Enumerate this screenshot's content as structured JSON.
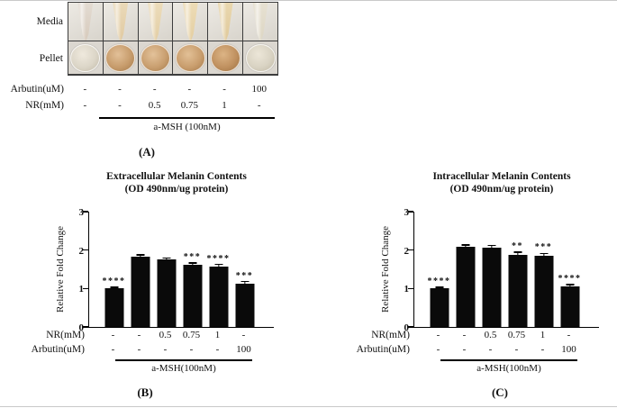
{
  "figure": {
    "border_color": "#c9c9c9",
    "background": "#ffffff"
  },
  "panelA": {
    "panel_label": "(A)",
    "row_labels": [
      "Media",
      "Pellet"
    ],
    "treatment_rows": [
      {
        "label": "Arbutin(uM)",
        "values": [
          "-",
          "-",
          "-",
          "-",
          "-",
          "100"
        ]
      },
      {
        "label": "NR(mM)",
        "values": [
          "-",
          "-",
          "0.5",
          "0.75",
          "1",
          "-"
        ]
      }
    ],
    "group_line_label": "a-MSH (100nM)",
    "media_cell_bg": [
      "#edeae4",
      "#d8d4cc"
    ],
    "pellet_cell_bg": "#dbd7d0",
    "grid_line_color": "#3c3c3c",
    "media_tube_colors": [
      [
        "#e3dbd2",
        "#d6c9ba"
      ],
      [
        "#ead9b8",
        "#e0c9a0"
      ],
      [
        "#ecdcba",
        "#e2cda4"
      ],
      [
        "#eddcb6",
        "#e3cda0"
      ],
      [
        "#e9d7ae",
        "#dfc89a"
      ],
      [
        "#e7e1d2",
        "#dcd5c2"
      ]
    ],
    "pellet_colors": [
      [
        "#efe9dd",
        "#dcd6c8",
        "#c6bfae"
      ],
      [
        "#e2c098",
        "#c79c6c",
        "#a97f50"
      ],
      [
        "#e3c29a",
        "#c99f70",
        "#ab8152"
      ],
      [
        "#e2c096",
        "#c99e6e",
        "#aa7f50"
      ],
      [
        "#dcb485",
        "#c09160",
        "#a27646"
      ],
      [
        "#ece6d8",
        "#d9d3c3",
        "#c3bcaa"
      ]
    ]
  },
  "chart_data": [
    {
      "type": "bar",
      "panel_label": "(B)",
      "title": "Extracellular Melanin Contents",
      "subtitle": "(OD 490nm/ug protein)",
      "ylabel": "Relative Fold Change",
      "ylim": [
        0,
        3
      ],
      "yticks": [
        0,
        1,
        2,
        3
      ],
      "bar_color": "#0a0a0a",
      "values": [
        1.0,
        1.82,
        1.75,
        1.62,
        1.57,
        1.12
      ],
      "errors": [
        0.02,
        0.04,
        0.03,
        0.03,
        0.04,
        0.05
      ],
      "significance": [
        "****",
        "",
        "",
        "***",
        "****",
        "***"
      ],
      "row_label_nr": "NR(mM)",
      "nr_values": [
        "-",
        "-",
        "0.5",
        "0.75",
        "1",
        "-"
      ],
      "row_label_arbutin": "Arbutin(uM)",
      "arbutin_values": [
        "-",
        "-",
        "-",
        "-",
        "-",
        "100"
      ],
      "group_line_label": "a-MSH(100nM)"
    },
    {
      "type": "bar",
      "panel_label": "(C)",
      "title": "Intracellular Melanin Contents",
      "subtitle": "(OD 490nm/ug protein)",
      "ylabel": "Relative Fold Change",
      "ylim": [
        0,
        3
      ],
      "yticks": [
        0,
        1,
        2,
        3
      ],
      "bar_color": "#0a0a0a",
      "values": [
        1.0,
        2.08,
        2.07,
        1.88,
        1.85,
        1.05
      ],
      "errors": [
        0.02,
        0.04,
        0.04,
        0.05,
        0.05,
        0.04
      ],
      "significance": [
        "****",
        "",
        "",
        "**",
        "***",
        "****"
      ],
      "row_label_nr": "NR(mM)",
      "nr_values": [
        "-",
        "-",
        "0.5",
        "0.75",
        "1",
        "-"
      ],
      "row_label_arbutin": "Arbutin(uM)",
      "arbutin_values": [
        "-",
        "-",
        "-",
        "-",
        "-",
        "100"
      ],
      "group_line_label": "a-MSH(100nM)"
    }
  ]
}
